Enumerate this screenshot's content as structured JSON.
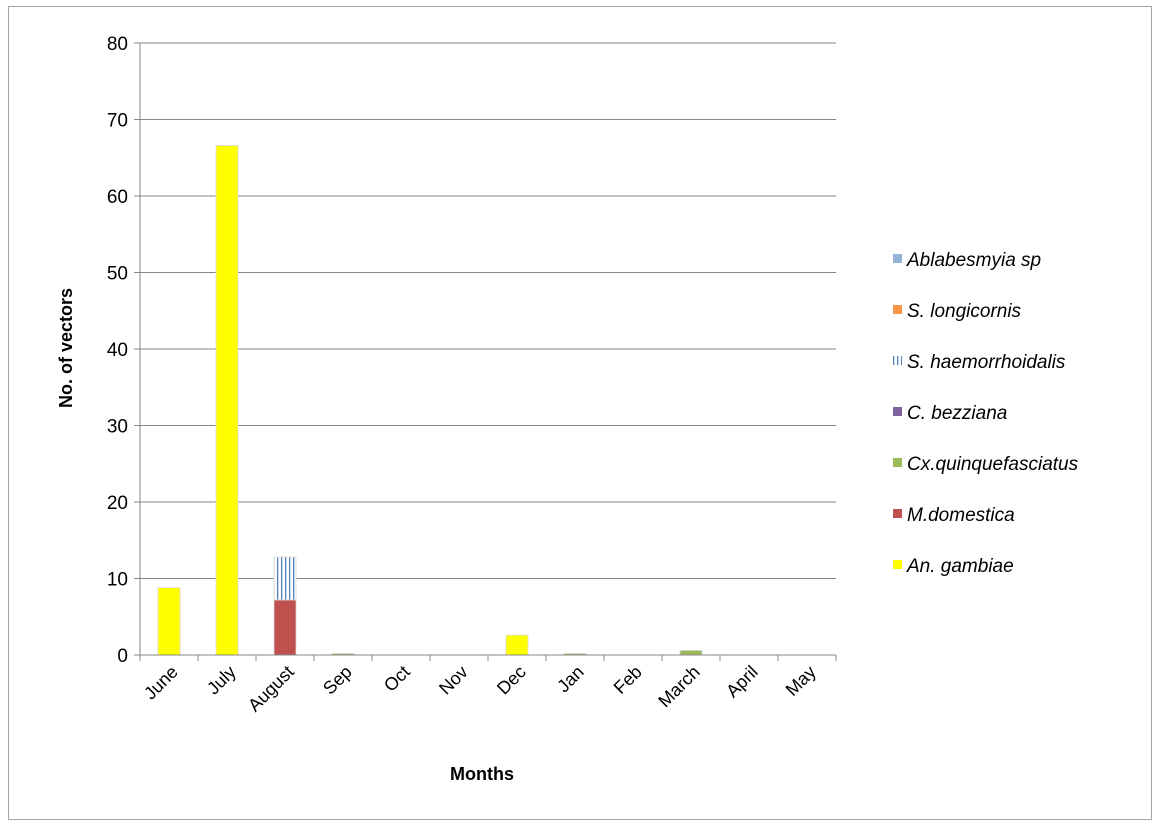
{
  "chart_data": {
    "type": "bar",
    "stacked": true,
    "categories": [
      "June",
      "July",
      "August",
      "Sep",
      "Oct",
      "Nov",
      "Dec",
      "Jan",
      "Feb",
      "March",
      "April",
      "May"
    ],
    "xlabel": "Months",
    "ylabel": "No. of vectors",
    "ylim": [
      0,
      80
    ],
    "yticks": [
      0,
      10,
      20,
      30,
      40,
      50,
      60,
      70,
      80
    ],
    "grid": true,
    "legend_position": "right",
    "series": [
      {
        "name": "An. gambiae",
        "color": "#ffff00",
        "pattern": "solid",
        "values": [
          8.8,
          66.6,
          0,
          0,
          0,
          0,
          2.6,
          0,
          0,
          0,
          0,
          0
        ]
      },
      {
        "name": "M.domestica",
        "color": "#c0504d",
        "pattern": "solid",
        "values": [
          0,
          0,
          7.2,
          0,
          0,
          0,
          0,
          0,
          0,
          0,
          0,
          0
        ]
      },
      {
        "name": "Cx.quinquefasciatus",
        "color": "#9bbb59",
        "pattern": "solid",
        "values": [
          0,
          0,
          0,
          0.2,
          0,
          0,
          0,
          0.2,
          0,
          0.6,
          0,
          0
        ]
      },
      {
        "name": "C. bezziana",
        "color": "#8064a2",
        "pattern": "solid",
        "values": [
          0,
          0,
          0,
          0,
          0,
          0,
          0,
          0,
          0,
          0,
          0,
          0
        ]
      },
      {
        "name": "S. haemorrhoidalis",
        "color": "#4f81bd",
        "pattern": "vertical-lines",
        "values": [
          0,
          0,
          5.6,
          0,
          0,
          0,
          0,
          0,
          0,
          0,
          0,
          0
        ]
      },
      {
        "name": "S. longicornis",
        "color": "#f79646",
        "pattern": "solid",
        "values": [
          0,
          0,
          0,
          0,
          0,
          0,
          0,
          0,
          0,
          0,
          0,
          0
        ]
      },
      {
        "name": "Ablabesmyia sp",
        "color": "#95b3d7",
        "pattern": "solid",
        "values": [
          0,
          0,
          0,
          0,
          0,
          0,
          0,
          0,
          0,
          0,
          0,
          0
        ]
      }
    ]
  }
}
